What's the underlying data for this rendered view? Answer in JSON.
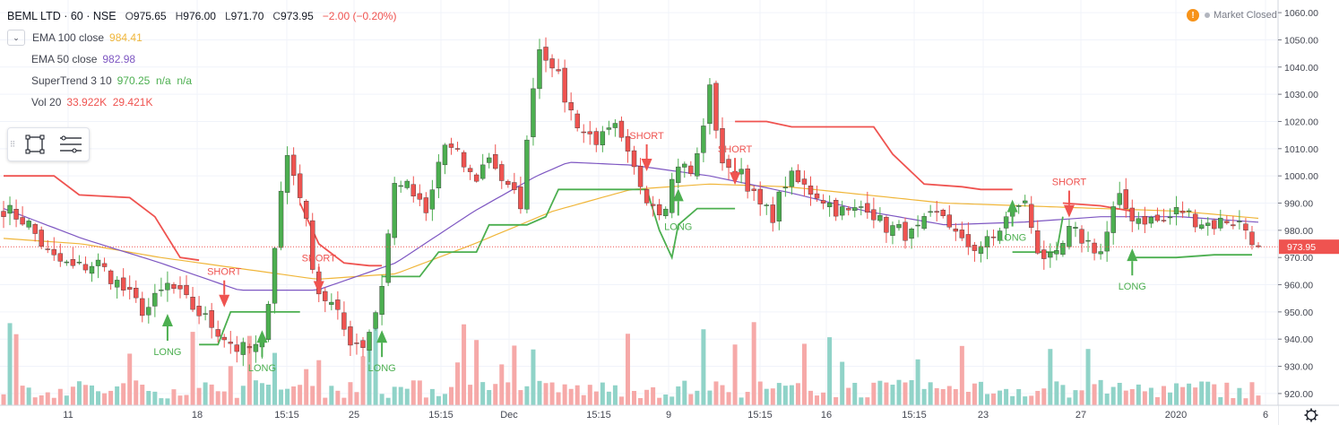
{
  "header": {
    "symbol": "BEML LTD · 60 · NSE",
    "ohlc": [
      {
        "k": "O",
        "v": "975.65"
      },
      {
        "k": "H",
        "v": "976.00"
      },
      {
        "k": "L",
        "v": "971.70"
      },
      {
        "k": "C",
        "v": "973.95"
      }
    ],
    "change": "−2.00 (−0.20%)",
    "market_status": "Market Closed"
  },
  "legend": [
    {
      "name": "EMA 100 close",
      "values": "984.41",
      "color": "#f0b63a"
    },
    {
      "name": "EMA 50 close",
      "values": "982.98",
      "color": "#7e57c2"
    },
    {
      "name": "SuperTrend 3 10",
      "values": "970.25  n/a  n/a",
      "color": "#4caf50"
    },
    {
      "name": "Vol 20",
      "values": "33.922K  29.421K",
      "color": "#ef5350"
    }
  ],
  "price_label": "973.95",
  "colors": {
    "up": "#4caf50",
    "down": "#ef5350",
    "ema100": "#f0b63a",
    "ema50": "#7e57c2",
    "st_up": "#4caf50",
    "st_down": "#ef5350"
  },
  "chart_data": {
    "type": "candlestick",
    "y_range": [
      917,
      1063
    ],
    "y_ticks": [
      "1060.00",
      "1050.00",
      "1040.00",
      "1030.00",
      "1020.00",
      "1010.00",
      "1000.00",
      "990.00",
      "980.00",
      "970.00",
      "960.00",
      "950.00",
      "940.00",
      "930.00",
      "920.00"
    ],
    "x_ticks": [
      "11",
      "18",
      "15:15",
      "25",
      "15:15",
      "Dec",
      "15:15",
      "9",
      "15:15",
      "16",
      "15:15",
      "23",
      "27",
      "2020",
      "6"
    ],
    "close_anchors": [
      [
        0,
        988
      ],
      [
        3,
        983
      ],
      [
        6,
        970
      ],
      [
        9,
        966
      ],
      [
        12,
        968
      ],
      [
        15,
        959
      ],
      [
        18,
        950
      ],
      [
        21,
        960
      ],
      [
        24,
        952
      ],
      [
        27,
        944
      ],
      [
        30,
        936
      ],
      [
        33,
        937
      ],
      [
        36,
        1009
      ],
      [
        38,
        992
      ],
      [
        40,
        958
      ],
      [
        42,
        952
      ],
      [
        44,
        940
      ],
      [
        46,
        938
      ],
      [
        48,
        955
      ],
      [
        50,
        1000
      ],
      [
        52,
        994
      ],
      [
        54,
        985
      ],
      [
        56,
        1012
      ],
      [
        58,
        1007
      ],
      [
        60,
        998
      ],
      [
        62,
        1008
      ],
      [
        64,
        996
      ],
      [
        66,
        990
      ],
      [
        68,
        1048
      ],
      [
        70,
        1042
      ],
      [
        72,
        1025
      ],
      [
        74,
        1016
      ],
      [
        76,
        1013
      ],
      [
        78,
        1017
      ],
      [
        80,
        1004
      ],
      [
        82,
        993
      ],
      [
        84,
        987
      ],
      [
        86,
        1005
      ],
      [
        88,
        1000
      ],
      [
        90,
        1032
      ],
      [
        92,
        1000
      ],
      [
        94,
        1003
      ],
      [
        96,
        990
      ],
      [
        98,
        985
      ],
      [
        100,
        1000
      ],
      [
        102,
        996
      ],
      [
        104,
        993
      ],
      [
        106,
        988
      ],
      [
        108,
        986
      ],
      [
        110,
        990
      ],
      [
        112,
        982
      ],
      [
        114,
        980
      ],
      [
        116,
        978
      ],
      [
        118,
        984
      ],
      [
        120,
        986
      ],
      [
        122,
        975
      ],
      [
        124,
        974
      ],
      [
        126,
        976
      ],
      [
        128,
        985
      ],
      [
        130,
        992
      ],
      [
        132,
        972
      ],
      [
        134,
        968
      ],
      [
        136,
        980
      ],
      [
        138,
        976
      ],
      [
        140,
        972
      ],
      [
        142,
        992
      ],
      [
        144,
        985
      ],
      [
        146,
        984
      ],
      [
        148,
        983
      ],
      [
        150,
        988
      ],
      [
        152,
        984
      ],
      [
        154,
        982
      ],
      [
        156,
        984
      ],
      [
        158,
        982
      ],
      [
        160,
        974
      ]
    ],
    "ema100_anchors": [
      [
        0,
        977
      ],
      [
        10,
        975
      ],
      [
        20,
        970
      ],
      [
        30,
        966
      ],
      [
        40,
        962
      ],
      [
        50,
        964
      ],
      [
        60,
        975
      ],
      [
        70,
        987
      ],
      [
        80,
        995
      ],
      [
        90,
        997
      ],
      [
        100,
        996
      ],
      [
        110,
        993
      ],
      [
        120,
        990
      ],
      [
        130,
        989
      ],
      [
        140,
        988
      ],
      [
        150,
        987
      ],
      [
        160,
        984.41
      ]
    ],
    "ema50_anchors": [
      [
        0,
        988
      ],
      [
        10,
        977
      ],
      [
        20,
        968
      ],
      [
        30,
        958
      ],
      [
        40,
        958
      ],
      [
        50,
        968
      ],
      [
        60,
        987
      ],
      [
        68,
        1000
      ],
      [
        72,
        1005
      ],
      [
        80,
        1004
      ],
      [
        90,
        1000
      ],
      [
        100,
        994
      ],
      [
        110,
        987
      ],
      [
        120,
        982
      ],
      [
        130,
        983
      ],
      [
        140,
        985
      ],
      [
        150,
        985
      ],
      [
        160,
        982.98
      ]
    ],
    "supertrend_segments": [
      {
        "dir": "down",
        "points": [
          [
            0,
            1000
          ],
          [
            8,
            1000
          ],
          [
            12,
            993
          ],
          [
            20,
            992
          ],
          [
            24,
            985
          ],
          [
            28,
            970
          ],
          [
            31,
            969
          ]
        ]
      },
      {
        "dir": "up",
        "points": [
          [
            31,
            938
          ],
          [
            34,
            938
          ],
          [
            36,
            950
          ],
          [
            47,
            950
          ]
        ]
      },
      {
        "dir": "down",
        "points": [
          [
            47,
            990
          ],
          [
            50,
            975
          ],
          [
            54,
            968
          ],
          [
            58,
            967
          ],
          [
            60,
            967
          ]
        ]
      },
      {
        "dir": "up",
        "points": [
          [
            60,
            963
          ],
          [
            66,
            963
          ],
          [
            69,
            972
          ],
          [
            75,
            972
          ],
          [
            77,
            982
          ],
          [
            83,
            982
          ],
          [
            86,
            985
          ],
          [
            88,
            995
          ],
          [
            102,
            995
          ],
          [
            104,
            980
          ],
          [
            106,
            970
          ],
          [
            107,
            982
          ],
          [
            110,
            988
          ],
          [
            116,
            988
          ]
        ]
      },
      {
        "dir": "down",
        "points": [
          [
            116,
            1020
          ],
          [
            121,
            1020
          ],
          [
            125,
            1018
          ],
          [
            131,
            1018
          ],
          [
            138,
            1018
          ],
          [
            141,
            1008
          ],
          [
            146,
            997
          ],
          [
            152,
            996
          ],
          [
            155,
            995
          ],
          [
            160,
            995
          ]
        ]
      },
      {
        "dir": "up",
        "points": [
          [
            160,
            972
          ],
          [
            167,
            972
          ],
          [
            168,
            985
          ]
        ]
      },
      {
        "dir": "down",
        "points": [
          [
            168,
            990
          ],
          [
            174,
            989
          ],
          [
            179,
            987
          ]
        ]
      },
      {
        "dir": "up",
        "points": [
          [
            179,
            970
          ],
          [
            186,
            970
          ],
          [
            192,
            971
          ],
          [
            198,
            971
          ]
        ]
      }
    ],
    "signals": [
      {
        "type": "LONG",
        "i": 26,
        "price": 946
      },
      {
        "type": "SHORT",
        "i": 35,
        "price": 955
      },
      {
        "type": "LONG",
        "i": 41,
        "price": 940
      },
      {
        "type": "SHORT",
        "i": 50,
        "price": 960
      },
      {
        "type": "LONG",
        "i": 60,
        "price": 940
      },
      {
        "type": "SHORT",
        "i": 102,
        "price": 1005
      },
      {
        "type": "LONG",
        "i": 107,
        "price": 992
      },
      {
        "type": "SHORT",
        "i": 116,
        "price": 1000
      },
      {
        "type": "LONG",
        "i": 160,
        "price": 988
      },
      {
        "type": "SHORT",
        "i": 169,
        "price": 988
      },
      {
        "type": "LONG",
        "i": 179,
        "price": 970
      }
    ],
    "volume_max": 100
  }
}
